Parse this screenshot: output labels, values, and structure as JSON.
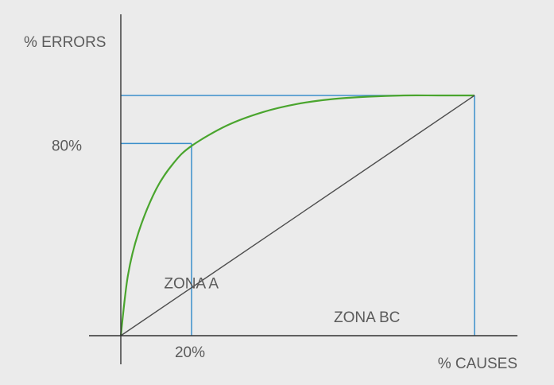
{
  "chart_data": {
    "type": "line",
    "ylabel": "% ERRORS",
    "xlabel": "% CAUSES",
    "xlim": [
      0,
      100
    ],
    "ylim": [
      0,
      100
    ],
    "x_ticks": [
      {
        "value": 20,
        "label": "20%"
      }
    ],
    "y_ticks": [
      {
        "value": 80,
        "label": "80%"
      }
    ],
    "series": [
      {
        "x": [
          0,
          2,
          5,
          10,
          15,
          20,
          30,
          40,
          50,
          60,
          70,
          80,
          90,
          100
        ],
        "y": [
          0,
          25,
          43,
          61,
          72,
          79,
          87.5,
          93,
          96.5,
          98.5,
          99.5,
          100,
          100,
          100
        ],
        "color": "#4aa52e"
      },
      {
        "x": [
          0,
          100
        ],
        "y": [
          0,
          100
        ],
        "color": "#4d4d4d"
      }
    ],
    "reference_lines": [
      {
        "x": 20,
        "y": 80,
        "color": "#3a8fcb"
      },
      {
        "x": 100,
        "y": 100,
        "color": "#3a8fcb"
      }
    ],
    "annotations": [
      {
        "text": "ZONA A",
        "x": 12,
        "y": 22
      },
      {
        "text": "ZONA BC",
        "x": 60,
        "y": 8
      }
    ],
    "grid": false
  },
  "colors": {
    "background": "#ebebeb",
    "axis": "#333333",
    "text": "#5b5b5b"
  }
}
